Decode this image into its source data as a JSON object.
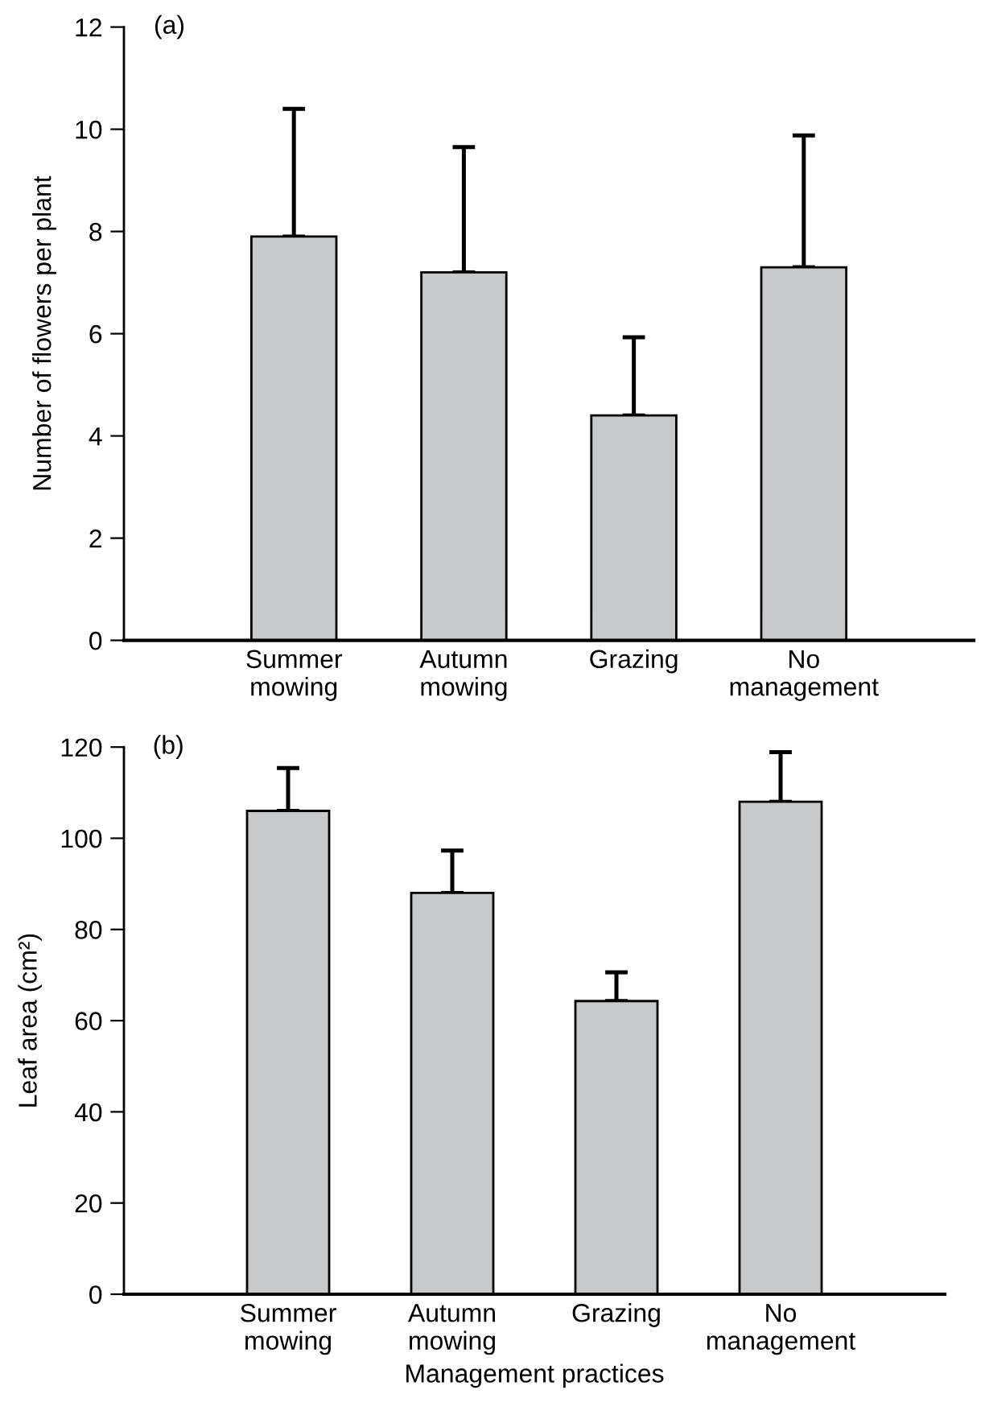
{
  "chart_data": [
    {
      "type": "bar",
      "title": "(a)",
      "ylabel": "Number of flowers per plant",
      "categories": [
        "Summer\nmowing",
        "Autumn\nmowing",
        "Grazing",
        "No\nmanagement"
      ],
      "series": [
        {
          "color": "#c8c9cb",
          "values": [
            7.9,
            7.2,
            4.4,
            7.3
          ],
          "errors": [
            [
              7.9,
              10.4
            ],
            [
              7.2,
              9.65
            ],
            [
              4.4,
              5.93
            ],
            [
              7.3,
              9.88
            ]
          ]
        }
      ],
      "ylim": [
        0,
        12
      ],
      "yticks": [
        0,
        2,
        4,
        6,
        8,
        10,
        12
      ],
      "grid": false
    },
    {
      "type": "bar",
      "title": "(b)",
      "ylabel": "Leaf area (cm²)",
      "xlabel": "Management practices",
      "categories": [
        "Summer\nmowing",
        "Autumn\nmowing",
        "Grazing",
        "No\nmanagement"
      ],
      "series": [
        {
          "color": "#c8c9cb",
          "values": [
            106,
            88,
            64.3,
            108
          ],
          "errors": [
            [
              106,
              115.4
            ],
            [
              88,
              97.3
            ],
            [
              64.3,
              70.6
            ],
            [
              108,
              118.9
            ]
          ]
        }
      ],
      "ylim": [
        0,
        120
      ],
      "yticks": [
        0,
        20,
        40,
        60,
        80,
        100,
        120
      ],
      "grid": false
    }
  ]
}
